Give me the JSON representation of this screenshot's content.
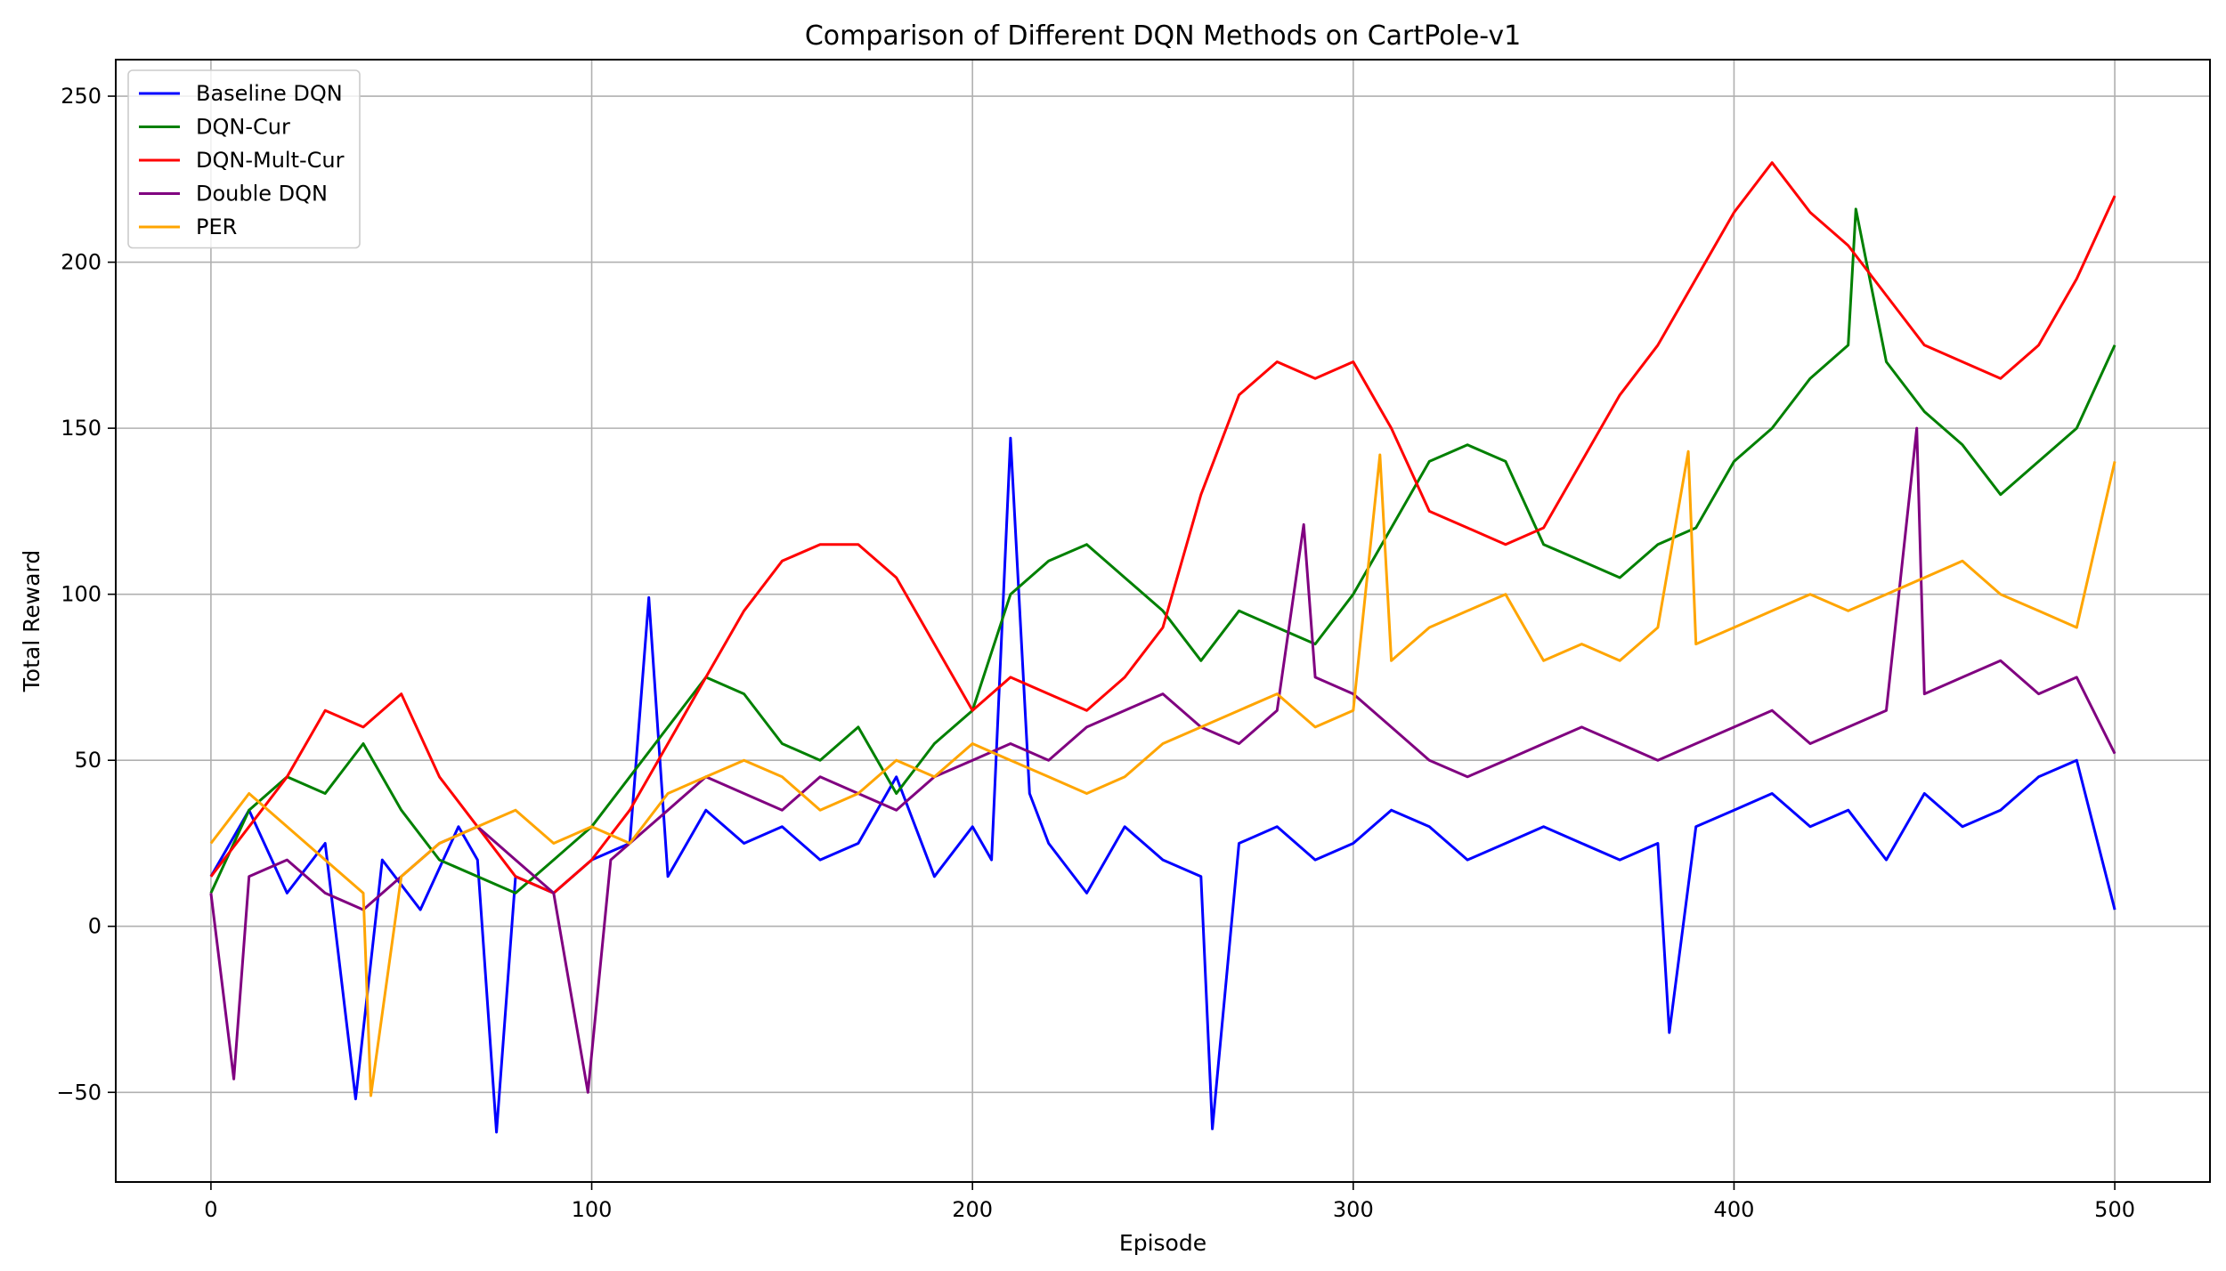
{
  "chart_data": {
    "type": "line",
    "title": "Comparison of Different DQN Methods on CartPole-v1",
    "xlabel": "Episode",
    "ylabel": "Total Reward",
    "xlim": [
      -25,
      525
    ],
    "ylim": [
      -77,
      261
    ],
    "xticks": [
      0,
      100,
      200,
      300,
      400,
      500
    ],
    "yticks": [
      -50,
      0,
      50,
      100,
      150,
      200,
      250
    ],
    "xtick_labels": [
      "0",
      "100",
      "200",
      "300",
      "400",
      "500"
    ],
    "ytick_labels": [
      "−50",
      "0",
      "50",
      "100",
      "150",
      "200",
      "250"
    ],
    "grid": true,
    "legend_position": "upper-left",
    "series": [
      {
        "name": "Baseline DQN",
        "color": "#0000ff",
        "x": [
          0,
          10,
          20,
          30,
          38,
          45,
          55,
          65,
          70,
          75,
          80,
          90,
          100,
          110,
          115,
          120,
          130,
          140,
          150,
          160,
          170,
          180,
          190,
          200,
          205,
          210,
          215,
          220,
          230,
          240,
          250,
          260,
          263,
          270,
          280,
          290,
          300,
          310,
          320,
          330,
          340,
          350,
          360,
          370,
          380,
          383,
          390,
          400,
          410,
          420,
          430,
          440,
          450,
          460,
          470,
          480,
          490,
          500
        ],
        "y": [
          15,
          35,
          10,
          25,
          -52,
          20,
          5,
          30,
          20,
          -62,
          15,
          10,
          20,
          25,
          99,
          15,
          35,
          25,
          30,
          20,
          25,
          45,
          15,
          30,
          20,
          147,
          40,
          25,
          10,
          30,
          20,
          15,
          -61,
          25,
          30,
          20,
          25,
          35,
          30,
          20,
          25,
          30,
          25,
          20,
          25,
          -32,
          30,
          35,
          40,
          30,
          35,
          20,
          40,
          30,
          35,
          45,
          50,
          5
        ]
      },
      {
        "name": "DQN-Cur",
        "color": "#008000",
        "x": [
          0,
          10,
          20,
          30,
          40,
          50,
          60,
          70,
          80,
          90,
          100,
          110,
          120,
          130,
          140,
          150,
          160,
          170,
          180,
          190,
          200,
          210,
          220,
          230,
          240,
          250,
          260,
          270,
          280,
          290,
          300,
          310,
          320,
          330,
          340,
          350,
          360,
          370,
          380,
          390,
          400,
          410,
          420,
          430,
          432,
          440,
          450,
          460,
          470,
          480,
          490,
          500
        ],
        "y": [
          10,
          35,
          45,
          40,
          55,
          35,
          20,
          15,
          10,
          20,
          30,
          45,
          60,
          75,
          70,
          55,
          50,
          60,
          40,
          55,
          65,
          100,
          110,
          115,
          105,
          95,
          80,
          95,
          90,
          85,
          100,
          120,
          140,
          145,
          140,
          115,
          110,
          105,
          115,
          120,
          140,
          150,
          165,
          175,
          216,
          170,
          155,
          145,
          130,
          140,
          150,
          175
        ]
      },
      {
        "name": "DQN-Mult-Cur",
        "color": "#ff0000",
        "x": [
          0,
          10,
          20,
          30,
          40,
          50,
          60,
          70,
          80,
          90,
          100,
          110,
          120,
          130,
          140,
          150,
          160,
          170,
          180,
          190,
          200,
          210,
          220,
          230,
          240,
          250,
          260,
          270,
          280,
          290,
          300,
          310,
          320,
          330,
          340,
          350,
          360,
          370,
          380,
          390,
          400,
          410,
          420,
          430,
          440,
          450,
          460,
          470,
          480,
          490,
          500
        ],
        "y": [
          15,
          30,
          45,
          65,
          60,
          70,
          45,
          30,
          15,
          10,
          20,
          35,
          55,
          75,
          95,
          110,
          115,
          115,
          105,
          85,
          65,
          75,
          70,
          65,
          75,
          90,
          130,
          160,
          170,
          165,
          170,
          150,
          125,
          120,
          115,
          120,
          140,
          160,
          175,
          195,
          215,
          230,
          215,
          205,
          190,
          175,
          170,
          165,
          175,
          195,
          220
        ]
      },
      {
        "name": "Double DQN",
        "color": "#800080",
        "x": [
          0,
          6,
          10,
          20,
          30,
          40,
          50,
          60,
          70,
          80,
          90,
          99,
          105,
          110,
          120,
          130,
          140,
          150,
          160,
          170,
          180,
          190,
          200,
          210,
          220,
          230,
          240,
          250,
          260,
          270,
          280,
          287,
          290,
          300,
          310,
          320,
          330,
          340,
          350,
          360,
          370,
          380,
          390,
          400,
          410,
          420,
          430,
          440,
          448,
          450,
          460,
          470,
          480,
          490,
          500
        ],
        "y": [
          10,
          -46,
          15,
          20,
          10,
          5,
          15,
          25,
          30,
          20,
          10,
          -50,
          20,
          25,
          35,
          45,
          40,
          35,
          45,
          40,
          35,
          45,
          50,
          55,
          50,
          60,
          65,
          70,
          60,
          55,
          65,
          121,
          75,
          70,
          60,
          50,
          45,
          50,
          55,
          60,
          55,
          50,
          55,
          60,
          65,
          55,
          60,
          65,
          150,
          70,
          75,
          80,
          70,
          75,
          52
        ]
      },
      {
        "name": "PER",
        "color": "#ffa500",
        "x": [
          0,
          10,
          20,
          30,
          40,
          42,
          50,
          60,
          70,
          80,
          90,
          100,
          110,
          120,
          130,
          140,
          150,
          160,
          170,
          180,
          190,
          200,
          210,
          220,
          230,
          240,
          250,
          260,
          270,
          280,
          290,
          300,
          307,
          310,
          320,
          330,
          340,
          350,
          360,
          370,
          380,
          388,
          390,
          400,
          410,
          420,
          430,
          440,
          450,
          460,
          470,
          480,
          490,
          500
        ],
        "y": [
          25,
          40,
          30,
          20,
          10,
          -51,
          15,
          25,
          30,
          35,
          25,
          30,
          25,
          40,
          45,
          50,
          45,
          35,
          40,
          50,
          45,
          55,
          50,
          45,
          40,
          45,
          55,
          60,
          65,
          70,
          60,
          65,
          142,
          80,
          90,
          95,
          100,
          80,
          85,
          80,
          90,
          143,
          85,
          90,
          95,
          100,
          95,
          100,
          105,
          110,
          100,
          95,
          90,
          140
        ]
      }
    ]
  }
}
